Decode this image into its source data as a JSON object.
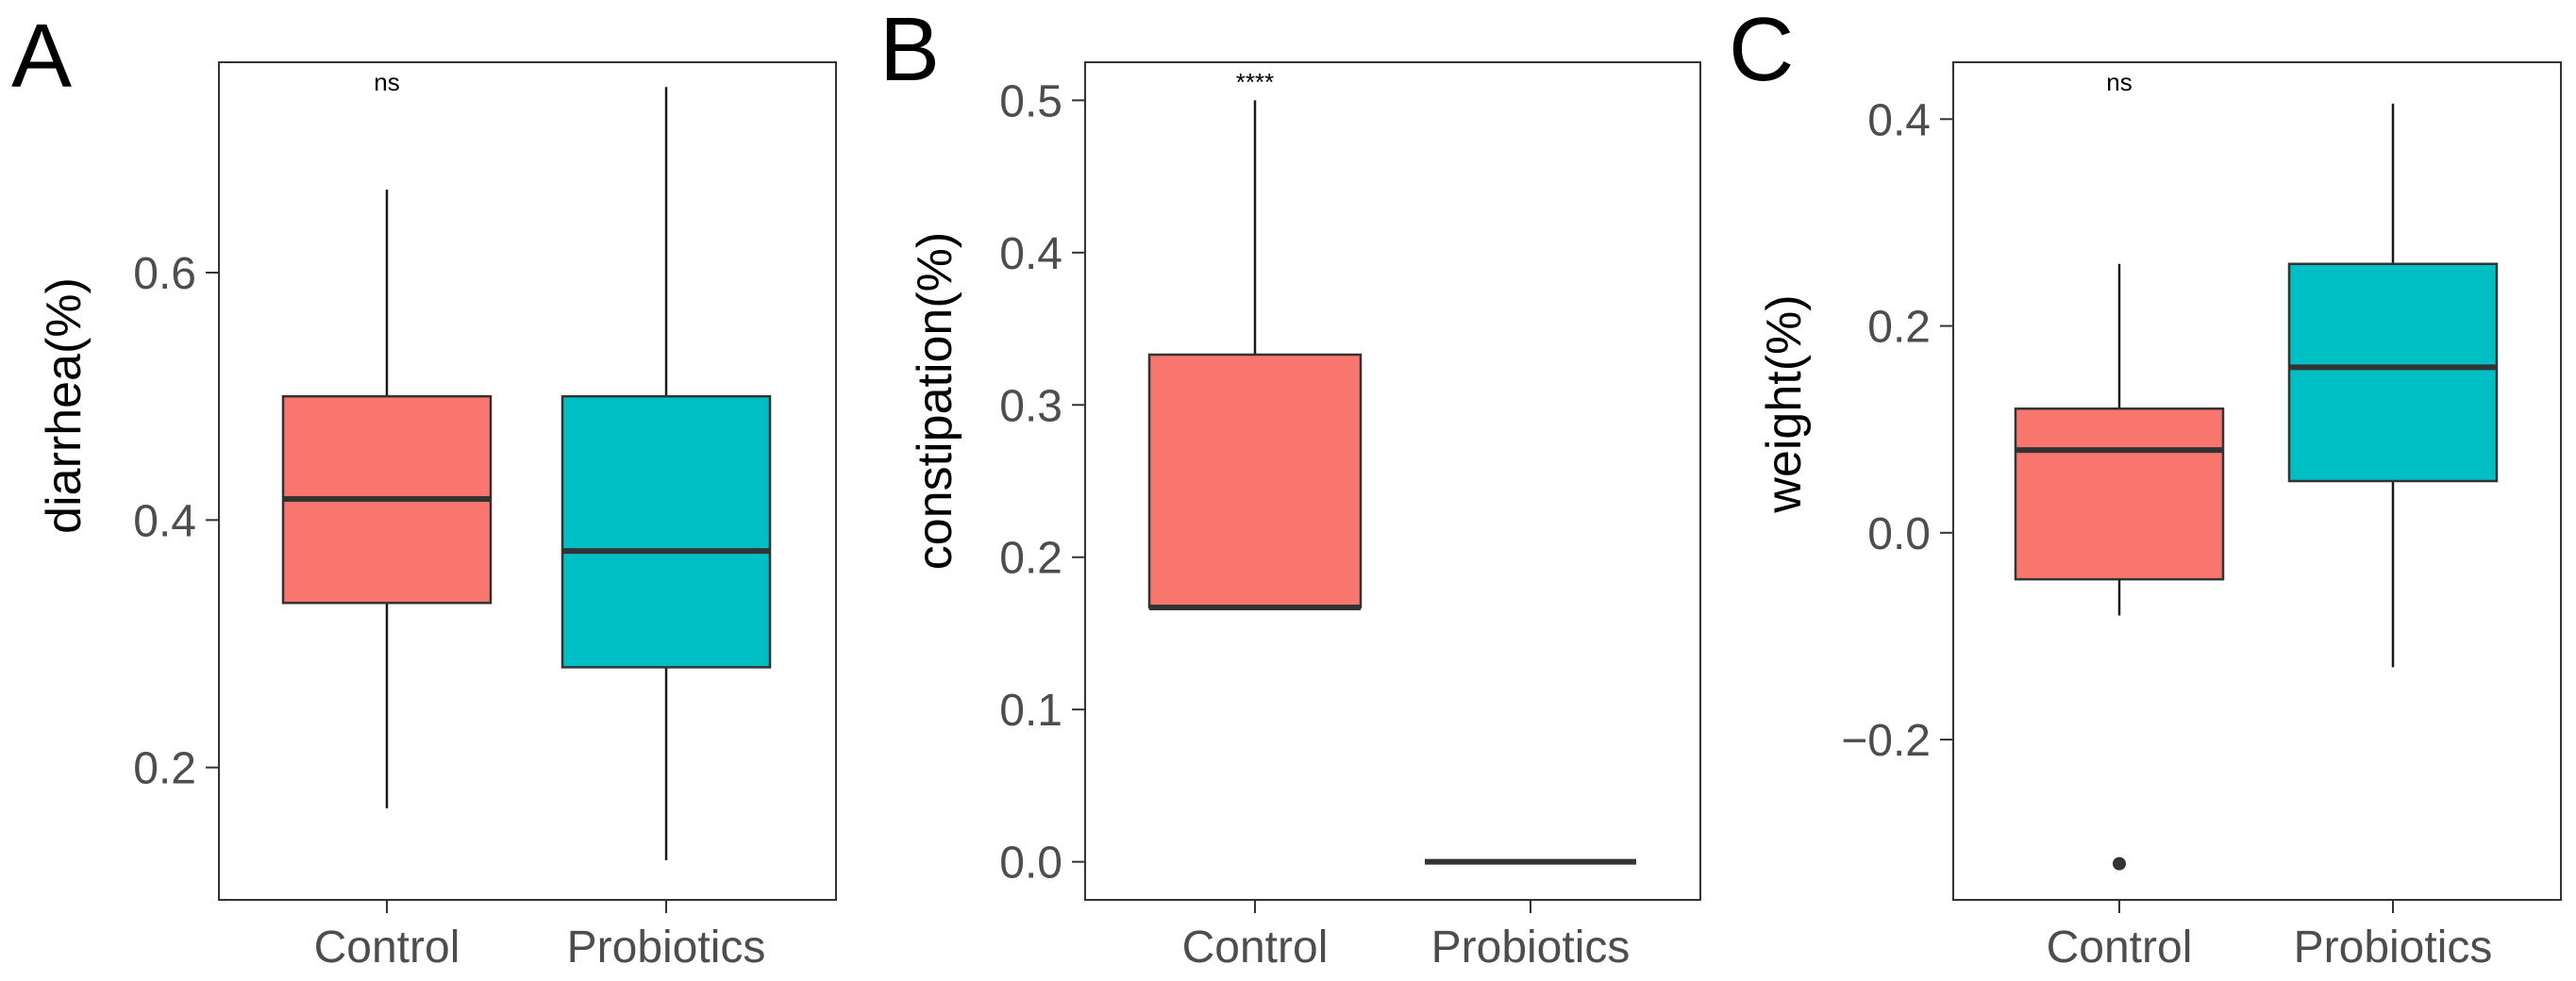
{
  "colors": {
    "control": "#F8766D",
    "probiotics": "#00BFC4",
    "outline": "#333333",
    "tick_text": "#4d4d4d"
  },
  "chart_data": [
    {
      "type": "boxplot",
      "panel": "A",
      "ylabel": "diarrhea(%)",
      "ylim": [
        0.093,
        0.77
      ],
      "yticks": [
        0.2,
        0.4,
        0.6
      ],
      "ytick_labels": [
        "0.2",
        "0.4",
        "0.6"
      ],
      "categories": [
        "Control",
        "Probiotics"
      ],
      "significance": "ns",
      "boxes": [
        {
          "group": "Control",
          "min": 0.167,
          "q1": 0.333,
          "median": 0.417,
          "q3": 0.5,
          "max": 0.667,
          "outliers": []
        },
        {
          "group": "Probiotics",
          "min": 0.125,
          "q1": 0.281,
          "median": 0.375,
          "q3": 0.5,
          "max": 0.75,
          "outliers": []
        }
      ]
    },
    {
      "type": "boxplot",
      "panel": "B",
      "ylabel": "constipation(%)",
      "ylim": [
        -0.025,
        0.525
      ],
      "yticks": [
        0.0,
        0.1,
        0.2,
        0.3,
        0.4,
        0.5
      ],
      "ytick_labels": [
        "0.0",
        "0.1",
        "0.2",
        "0.3",
        "0.4",
        "0.5"
      ],
      "categories": [
        "Control",
        "Probiotics"
      ],
      "significance": "****",
      "boxes": [
        {
          "group": "Control",
          "min": 0.167,
          "q1": 0.167,
          "median": 0.167,
          "q3": 0.333,
          "max": 0.5,
          "outliers": []
        },
        {
          "group": "Probiotics",
          "min": 0.0,
          "q1": 0.0,
          "median": 0.0,
          "q3": 0.0,
          "max": 0.0,
          "outliers": []
        }
      ]
    },
    {
      "type": "boxplot",
      "panel": "C",
      "ylabel": "weight(%)",
      "ylim": [
        -0.355,
        0.455
      ],
      "yticks": [
        -0.2,
        0.0,
        0.2,
        0.4
      ],
      "ytick_labels": [
        "−0.2",
        "0.0",
        "0.2",
        "0.4"
      ],
      "categories": [
        "Control",
        "Probiotics"
      ],
      "significance": "ns",
      "boxes": [
        {
          "group": "Control",
          "min": -0.08,
          "q1": -0.045,
          "median": 0.08,
          "q3": 0.12,
          "max": 0.26,
          "outliers": [
            -0.32
          ]
        },
        {
          "group": "Probiotics",
          "min": -0.13,
          "q1": 0.05,
          "median": 0.16,
          "q3": 0.26,
          "max": 0.415,
          "outliers": []
        }
      ]
    }
  ]
}
